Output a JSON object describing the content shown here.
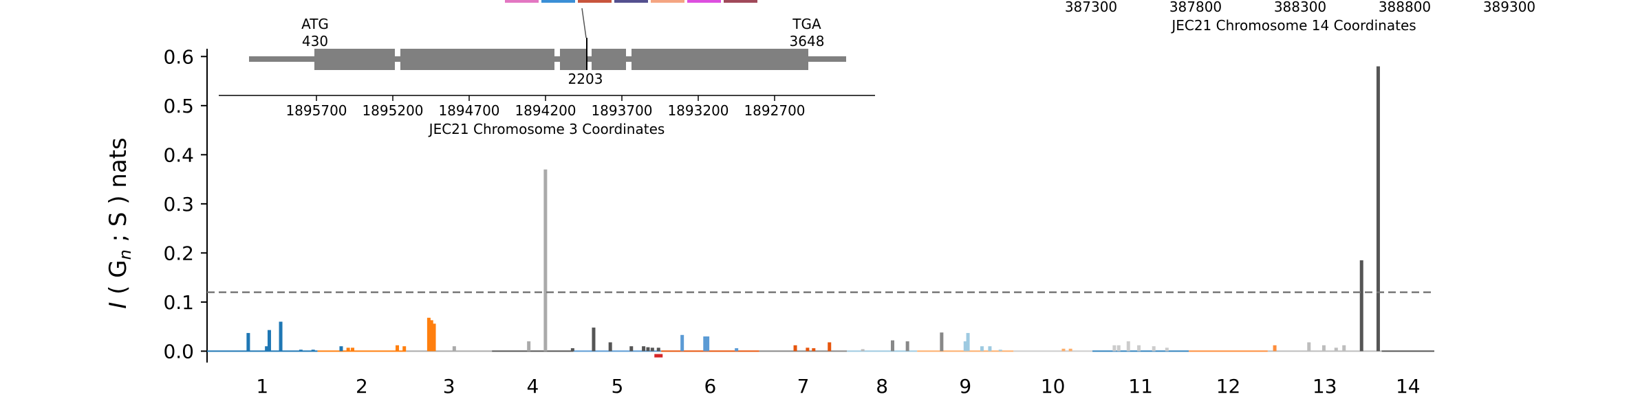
{
  "chart_data": [
    {
      "type": "bar",
      "ylabel": {
        "italic": "I",
        "pre": " ( G",
        "sub": "n",
        "post": " ; S ) nats"
      },
      "ylim": [
        -0.04,
        0.62
      ],
      "yticks": [
        "0.0",
        "0.1",
        "0.2",
        "0.3",
        "0.4",
        "0.5",
        "0.6"
      ],
      "xlim": [
        0.3,
        14.3
      ],
      "xticks": [
        "1",
        "2",
        "3",
        "4",
        "5",
        "6",
        "7",
        "8",
        "9",
        "10",
        "11",
        "12",
        "13",
        "14"
      ],
      "threshold": 0.12,
      "grid": false,
      "chromosomes": [
        {
          "name": "1",
          "start": 0.3,
          "end": 1.56,
          "color": "#1f77b4"
        },
        {
          "name": "2",
          "start": 1.56,
          "end": 2.57,
          "color": "#ff7f0e"
        },
        {
          "name": "3",
          "start": 2.57,
          "end": 3.55,
          "color": "#aaaaaa"
        },
        {
          "name": "4",
          "start": 3.55,
          "end": 4.48,
          "color": "#555555"
        },
        {
          "name": "5",
          "start": 4.48,
          "end": 5.48,
          "color": "#5b9bd5"
        },
        {
          "name": "6",
          "start": 5.48,
          "end": 6.6,
          "color": "#e6550d"
        },
        {
          "name": "7",
          "start": 6.6,
          "end": 7.6,
          "color": "#888888"
        },
        {
          "name": "8",
          "start": 7.6,
          "end": 8.4,
          "color": "#9ecae1"
        },
        {
          "name": "9",
          "start": 8.4,
          "end": 9.5,
          "color": "#fdae6b"
        },
        {
          "name": "10",
          "start": 9.5,
          "end": 10.4,
          "color": "#cccccc"
        },
        {
          "name": "11",
          "start": 10.4,
          "end": 11.5,
          "color": "#3182bd"
        },
        {
          "name": "12",
          "start": 11.5,
          "end": 12.4,
          "color": "#fd8d3c"
        },
        {
          "name": "13",
          "start": 12.4,
          "end": 13.7,
          "color": "#bdbdbd"
        },
        {
          "name": "14",
          "start": 13.7,
          "end": 14.3,
          "color": "#555555"
        }
      ],
      "bars": [
        {
          "x": 0.77,
          "y": 0.037,
          "c": "#1f77b4"
        },
        {
          "x": 0.98,
          "y": 0.01,
          "c": "#1f77b4"
        },
        {
          "x": 1.01,
          "y": 0.043,
          "c": "#1f77b4"
        },
        {
          "x": 1.14,
          "y": 0.06,
          "c": "#1f77b4"
        },
        {
          "x": 1.37,
          "y": 0.003,
          "c": "#1f77b4"
        },
        {
          "x": 1.51,
          "y": 0.003,
          "c": "#1f77b4"
        },
        {
          "x": 1.83,
          "y": 0.01,
          "c": "#1f77b4"
        },
        {
          "x": 1.91,
          "y": 0.007,
          "c": "#ff7f0e"
        },
        {
          "x": 1.96,
          "y": 0.007,
          "c": "#ff7f0e"
        },
        {
          "x": 2.47,
          "y": 0.012,
          "c": "#ff7f0e"
        },
        {
          "x": 2.55,
          "y": 0.01,
          "c": "#ff7f0e"
        },
        {
          "x": 2.83,
          "y": 0.068,
          "c": "#ff7f0e"
        },
        {
          "x": 2.86,
          "y": 0.063,
          "c": "#ff7f0e"
        },
        {
          "x": 2.89,
          "y": 0.056,
          "c": "#ff7f0e"
        },
        {
          "x": 3.12,
          "y": 0.01,
          "c": "#aaaaaa"
        },
        {
          "x": 3.97,
          "y": 0.02,
          "c": "#aaaaaa"
        },
        {
          "x": 4.16,
          "y": 0.37,
          "c": "#aaaaaa"
        },
        {
          "x": 4.47,
          "y": 0.006,
          "c": "#555555"
        },
        {
          "x": 4.71,
          "y": 0.048,
          "c": "#555555"
        },
        {
          "x": 4.9,
          "y": 0.018,
          "c": "#555555"
        },
        {
          "x": 5.14,
          "y": 0.01,
          "c": "#555555"
        },
        {
          "x": 5.28,
          "y": 0.01,
          "c": "#555555"
        },
        {
          "x": 5.33,
          "y": 0.008,
          "c": "#555555"
        },
        {
          "x": 5.38,
          "y": 0.007,
          "c": "#555555"
        },
        {
          "x": 5.45,
          "y": 0.007,
          "c": "#555555"
        },
        {
          "x": 5.72,
          "y": 0.033,
          "c": "#5b9bd5"
        },
        {
          "x": 5.98,
          "y": 0.03,
          "c": "#5b9bd5"
        },
        {
          "x": 6.01,
          "y": 0.03,
          "c": "#5b9bd5"
        },
        {
          "x": 6.34,
          "y": 0.006,
          "c": "#5b9bd5"
        },
        {
          "x": 7.01,
          "y": 0.012,
          "c": "#e6550d"
        },
        {
          "x": 7.15,
          "y": 0.007,
          "c": "#e6550d"
        },
        {
          "x": 7.22,
          "y": 0.006,
          "c": "#e6550d"
        },
        {
          "x": 7.4,
          "y": 0.018,
          "c": "#e6550d"
        },
        {
          "x": 7.78,
          "y": 0.004,
          "c": "#bbbbbb"
        },
        {
          "x": 8.12,
          "y": 0.022,
          "c": "#888888"
        },
        {
          "x": 8.29,
          "y": 0.02,
          "c": "#888888"
        },
        {
          "x": 8.68,
          "y": 0.038,
          "c": "#888888"
        },
        {
          "x": 8.95,
          "y": 0.02,
          "c": "#9ecae1"
        },
        {
          "x": 8.98,
          "y": 0.037,
          "c": "#9ecae1"
        },
        {
          "x": 9.14,
          "y": 0.01,
          "c": "#9ecae1"
        },
        {
          "x": 9.23,
          "y": 0.01,
          "c": "#9ecae1"
        },
        {
          "x": 9.35,
          "y": 0.003,
          "c": "#9ecae1"
        },
        {
          "x": 10.07,
          "y": 0.005,
          "c": "#fdae6b"
        },
        {
          "x": 10.15,
          "y": 0.005,
          "c": "#fdae6b"
        },
        {
          "x": 10.65,
          "y": 0.012,
          "c": "#cccccc"
        },
        {
          "x": 10.7,
          "y": 0.012,
          "c": "#cccccc"
        },
        {
          "x": 10.81,
          "y": 0.02,
          "c": "#cccccc"
        },
        {
          "x": 10.93,
          "y": 0.012,
          "c": "#cccccc"
        },
        {
          "x": 11.1,
          "y": 0.01,
          "c": "#cccccc"
        },
        {
          "x": 11.25,
          "y": 0.007,
          "c": "#cccccc"
        },
        {
          "x": 12.48,
          "y": 0.012,
          "c": "#fd8d3c"
        },
        {
          "x": 12.87,
          "y": 0.018,
          "c": "#bdbdbd"
        },
        {
          "x": 13.04,
          "y": 0.012,
          "c": "#bdbdbd"
        },
        {
          "x": 13.18,
          "y": 0.007,
          "c": "#bdbdbd"
        },
        {
          "x": 13.27,
          "y": 0.012,
          "c": "#bdbdbd"
        },
        {
          "x": 13.47,
          "y": 0.185,
          "c": "#555555"
        },
        {
          "x": 13.66,
          "y": 0.58,
          "c": "#555555"
        }
      ],
      "highlight": {
        "x": 5.45,
        "y": -0.01,
        "color": "#d62728"
      }
    },
    {
      "type": "gene-model",
      "xlabel": "JEC21 Chromosome 3 Coordinates",
      "xticks": [
        "1895700",
        "1895200",
        "1894700",
        "1894200",
        "1893700",
        "1893200",
        "1892700"
      ],
      "start_label": "ATG",
      "start_pos": "430",
      "end_label": "TGA",
      "end_pos": "3648",
      "marker_pos": "2203",
      "swatch_colors": [
        "#e377c2",
        "#3b8fd6",
        "#c8553d",
        "#54508f",
        "#f4a582",
        "#dd4fdf",
        "#a0495a"
      ]
    },
    {
      "type": "axis-only",
      "xlabel": "JEC21 Chromosome 14 Coordinates",
      "xticks": [
        "387300",
        "387800",
        "388300",
        "388800",
        "389300"
      ]
    }
  ]
}
